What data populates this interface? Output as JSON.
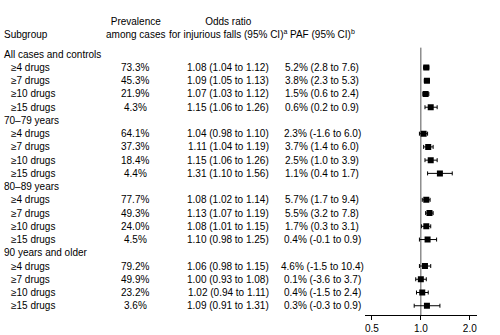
{
  "chart_data": {
    "type": "forest",
    "headers": {
      "subgroup": "Subgroup",
      "prevalence": {
        "lines": [
          "Prevalence",
          "among cases"
        ]
      },
      "odds_ratio": {
        "lines": [
          "Odds ratio",
          "for injurious falls (95% CI)"
        ],
        "footnote": "a"
      },
      "paf": {
        "lines": [
          "PAF (95% CI)"
        ],
        "footnote": "b"
      }
    },
    "groups": [
      {
        "name": "All cases and controls",
        "rows": [
          {
            "label": "≥4 drugs",
            "prevalence": "73.3%",
            "or": 1.08,
            "or_lo": 1.04,
            "or_hi": 1.12,
            "or_label": "1.08 (1.04 to 1.12)",
            "paf": "5.2% (2.8 to 7.6)"
          },
          {
            "label": "≥7 drugs",
            "prevalence": "45.3%",
            "or": 1.09,
            "or_lo": 1.05,
            "or_hi": 1.13,
            "or_label": "1.09 (1.05 to 1.13)",
            "paf": "3.8% (2.3 to 5.3)"
          },
          {
            "label": "≥10 drugs",
            "prevalence": "21.9%",
            "or": 1.07,
            "or_lo": 1.03,
            "or_hi": 1.12,
            "or_label": "1.07 (1.03 to 1.12)",
            "paf": "1.5% (0.6 to 2.4)"
          },
          {
            "label": "≥15 drugs",
            "prevalence": "4.3%",
            "or": 1.15,
            "or_lo": 1.06,
            "or_hi": 1.26,
            "or_label": "1.15 (1.06 to 1.26)",
            "paf": "0.6% (0.2 to 0.9)"
          }
        ]
      },
      {
        "name": "70–79 years",
        "rows": [
          {
            "label": "≥4 drugs",
            "prevalence": "64.1%",
            "or": 1.04,
            "or_lo": 0.98,
            "or_hi": 1.1,
            "or_label": "1.04 (0.98 to 1.10)",
            "paf": "2.3% (-1.6 to 6.0)"
          },
          {
            "label": "≥7 drugs",
            "prevalence": "37.3%",
            "or": 1.11,
            "or_lo": 1.04,
            "or_hi": 1.19,
            "or_label": "1.11 (1.04 to 1.19)",
            "paf": "3.7% (1.4 to 6.0)"
          },
          {
            "label": "≥10 drugs",
            "prevalence": "18.4%",
            "or": 1.15,
            "or_lo": 1.06,
            "or_hi": 1.26,
            "or_label": "1.15 (1.06 to 1.26)",
            "paf": "2.5% (1.0 to 3.9)"
          },
          {
            "label": "≥15 drugs",
            "prevalence": "4.4%",
            "or": 1.31,
            "or_lo": 1.1,
            "or_hi": 1.56,
            "or_label": "1.31 (1.10 to 1.56)",
            "paf": "1.1% (0.4 to 1.7)"
          }
        ]
      },
      {
        "name": "80–89 years",
        "rows": [
          {
            "label": "≥4 drugs",
            "prevalence": "77.7%",
            "or": 1.08,
            "or_lo": 1.02,
            "or_hi": 1.14,
            "or_label": "1.08 (1.02 to 1.14)",
            "paf": "5.7% (1.7 to 9.4)"
          },
          {
            "label": "≥7 drugs",
            "prevalence": "49.3%",
            "or": 1.13,
            "or_lo": 1.07,
            "or_hi": 1.19,
            "or_label": "1.13 (1.07 to 1.19)",
            "paf": "5.5% (3.2 to 7.8)"
          },
          {
            "label": "≥10 drugs",
            "prevalence": "24.0%",
            "or": 1.08,
            "or_lo": 1.01,
            "or_hi": 1.15,
            "or_label": "1.08 (1.01 to 1.15)",
            "paf": "1.7% (0.3 to 3.1)"
          },
          {
            "label": "≥15 drugs",
            "prevalence": "4.5%",
            "or": 1.1,
            "or_lo": 0.98,
            "or_hi": 1.25,
            "or_label": "1.10 (0.98 to 1.25)",
            "paf": "0.4% (-0.1 to 0.9)"
          }
        ]
      },
      {
        "name": "90 years and older",
        "rows": [
          {
            "label": "≥4 drugs",
            "prevalence": "79.2%",
            "or": 1.06,
            "or_lo": 0.98,
            "or_hi": 1.15,
            "or_label": "1.06 (0.98 to 1.15)",
            "paf": "4.6% (-1.5 to 10.4)"
          },
          {
            "label": "≥7 drugs",
            "prevalence": "49.9%",
            "or": 1.0,
            "or_lo": 0.93,
            "or_hi": 1.08,
            "or_label": "1.00 (0.93 to 1.08)",
            "paf": "0.1% (-3.6 to 3.7)"
          },
          {
            "label": "≥10 drugs",
            "prevalence": "23.2%",
            "or": 1.02,
            "or_lo": 0.94,
            "or_hi": 1.11,
            "or_label": "1.02 (0.94 to 1.11)",
            "paf": "0.4% (-1.5 to 2.4)"
          },
          {
            "label": "≥15 drugs",
            "prevalence": "3.6%",
            "or": 1.09,
            "or_lo": 0.91,
            "or_hi": 1.31,
            "or_label": "1.09 (0.91 to 1.31)",
            "paf": "0.3% (-0.3 to 0.9)"
          }
        ]
      }
    ],
    "xlim": [
      0.45,
      2.2
    ],
    "xticks": [
      0.5,
      {
        "value": 1,
        "label": "1.0"
      },
      {
        "value": 2,
        "label": "2.0"
      }
    ],
    "log": "x",
    "grid": false,
    "reference_line": 1,
    "marker": "square",
    "color": "#000000"
  }
}
